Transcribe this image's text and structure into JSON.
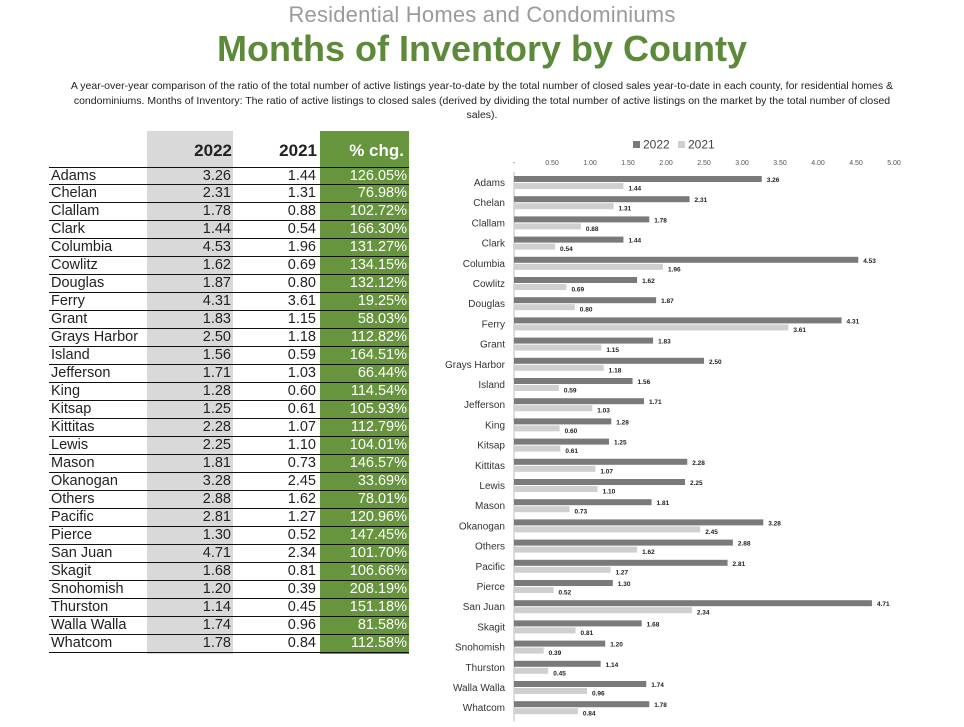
{
  "header": {
    "supertitle": "Residential Homes and Condominiums",
    "title": "Months of Inventory by County",
    "description": "A year-over-year comparison of the ratio of the total number of active listings year-to-date by the total number of closed sales year-to-date in each county, for residential homes & condominiums. Months of Inventory: The ratio of active listings to closed sales (derived by dividing the total number of active listings on the market by the total number of closed sales)."
  },
  "table": {
    "headers": {
      "y2022": "2022",
      "y2021": "2021",
      "chg": "% chg."
    },
    "rows": [
      {
        "county": "Adams",
        "v2022": "3.26",
        "v2021": "1.44",
        "chg": "126.05%"
      },
      {
        "county": "Chelan",
        "v2022": "2.31",
        "v2021": "1.31",
        "chg": "76.98%"
      },
      {
        "county": "Clallam",
        "v2022": "1.78",
        "v2021": "0.88",
        "chg": "102.72%"
      },
      {
        "county": "Clark",
        "v2022": "1.44",
        "v2021": "0.54",
        "chg": "166.30%"
      },
      {
        "county": "Columbia",
        "v2022": "4.53",
        "v2021": "1.96",
        "chg": "131.27%"
      },
      {
        "county": "Cowlitz",
        "v2022": "1.62",
        "v2021": "0.69",
        "chg": "134.15%"
      },
      {
        "county": "Douglas",
        "v2022": "1.87",
        "v2021": "0.80",
        "chg": "132.12%"
      },
      {
        "county": "Ferry",
        "v2022": "4.31",
        "v2021": "3.61",
        "chg": "19.25%"
      },
      {
        "county": "Grant",
        "v2022": "1.83",
        "v2021": "1.15",
        "chg": "58.03%"
      },
      {
        "county": "Grays Harbor",
        "v2022": "2.50",
        "v2021": "1.18",
        "chg": "112.82%"
      },
      {
        "county": "Island",
        "v2022": "1.56",
        "v2021": "0.59",
        "chg": "164.51%"
      },
      {
        "county": "Jefferson",
        "v2022": "1.71",
        "v2021": "1.03",
        "chg": "66.44%"
      },
      {
        "county": "King",
        "v2022": "1.28",
        "v2021": "0.60",
        "chg": "114.54%"
      },
      {
        "county": "Kitsap",
        "v2022": "1.25",
        "v2021": "0.61",
        "chg": "105.93%"
      },
      {
        "county": "Kittitas",
        "v2022": "2.28",
        "v2021": "1.07",
        "chg": "112.79%"
      },
      {
        "county": "Lewis",
        "v2022": "2.25",
        "v2021": "1.10",
        "chg": "104.01%"
      },
      {
        "county": "Mason",
        "v2022": "1.81",
        "v2021": "0.73",
        "chg": "146.57%"
      },
      {
        "county": "Okanogan",
        "v2022": "3.28",
        "v2021": "2.45",
        "chg": "33.69%"
      },
      {
        "county": "Others",
        "v2022": "2.88",
        "v2021": "1.62",
        "chg": "78.01%"
      },
      {
        "county": "Pacific",
        "v2022": "2.81",
        "v2021": "1.27",
        "chg": "120.96%"
      },
      {
        "county": "Pierce",
        "v2022": "1.30",
        "v2021": "0.52",
        "chg": "147.45%"
      },
      {
        "county": "San Juan",
        "v2022": "4.71",
        "v2021": "2.34",
        "chg": "101.70%"
      },
      {
        "county": "Skagit",
        "v2022": "1.68",
        "v2021": "0.81",
        "chg": "106.66%"
      },
      {
        "county": "Snohomish",
        "v2022": "1.20",
        "v2021": "0.39",
        "chg": "208.19%"
      },
      {
        "county": "Thurston",
        "v2022": "1.14",
        "v2021": "0.45",
        "chg": "151.18%"
      },
      {
        "county": "Walla Walla",
        "v2022": "1.74",
        "v2021": "0.96",
        "chg": "81.58%"
      },
      {
        "county": "Whatcom",
        "v2022": "1.78",
        "v2021": "0.84",
        "chg": "112.58%"
      }
    ]
  },
  "colors": {
    "accent_green": "#5d8a3a",
    "chg_column": "#66953e",
    "y2022_column": "#d9d9d9",
    "bar_2022": "#7a7a7a",
    "bar_2021": "#cfcfcf"
  },
  "chart_data": {
    "type": "bar",
    "orientation": "horizontal",
    "categories": [
      "Adams",
      "Chelan",
      "Clallam",
      "Clark",
      "Columbia",
      "Cowlitz",
      "Douglas",
      "Ferry",
      "Grant",
      "Grays Harbor",
      "Island",
      "Jefferson",
      "King",
      "Kitsap",
      "Kittitas",
      "Lewis",
      "Mason",
      "Okanogan",
      "Others",
      "Pacific",
      "Pierce",
      "San Juan",
      "Skagit",
      "Snohomish",
      "Thurston",
      "Walla Walla",
      "Whatcom"
    ],
    "series": [
      {
        "name": "2022",
        "values": [
          3.26,
          2.31,
          1.78,
          1.44,
          4.53,
          1.62,
          1.87,
          4.31,
          1.83,
          2.5,
          1.56,
          1.71,
          1.28,
          1.25,
          2.28,
          2.25,
          1.81,
          3.28,
          2.88,
          2.81,
          1.3,
          4.71,
          1.68,
          1.2,
          1.14,
          1.74,
          1.78
        ]
      },
      {
        "name": "2021",
        "values": [
          1.44,
          1.31,
          0.88,
          0.54,
          1.96,
          0.69,
          0.8,
          3.61,
          1.15,
          1.18,
          0.59,
          1.03,
          0.6,
          0.61,
          1.07,
          1.1,
          0.73,
          2.45,
          1.62,
          1.27,
          0.52,
          2.34,
          0.81,
          0.39,
          0.45,
          0.96,
          0.84
        ]
      }
    ],
    "x_ticks": [
      "-",
      "0.50",
      "1.00",
      "1.50",
      "2.00",
      "2.50",
      "3.00",
      "3.50",
      "4.00",
      "4.50",
      "5.00"
    ],
    "xlim": [
      0,
      5
    ],
    "legend": "top",
    "title": "",
    "xlabel": "",
    "ylabel": ""
  }
}
